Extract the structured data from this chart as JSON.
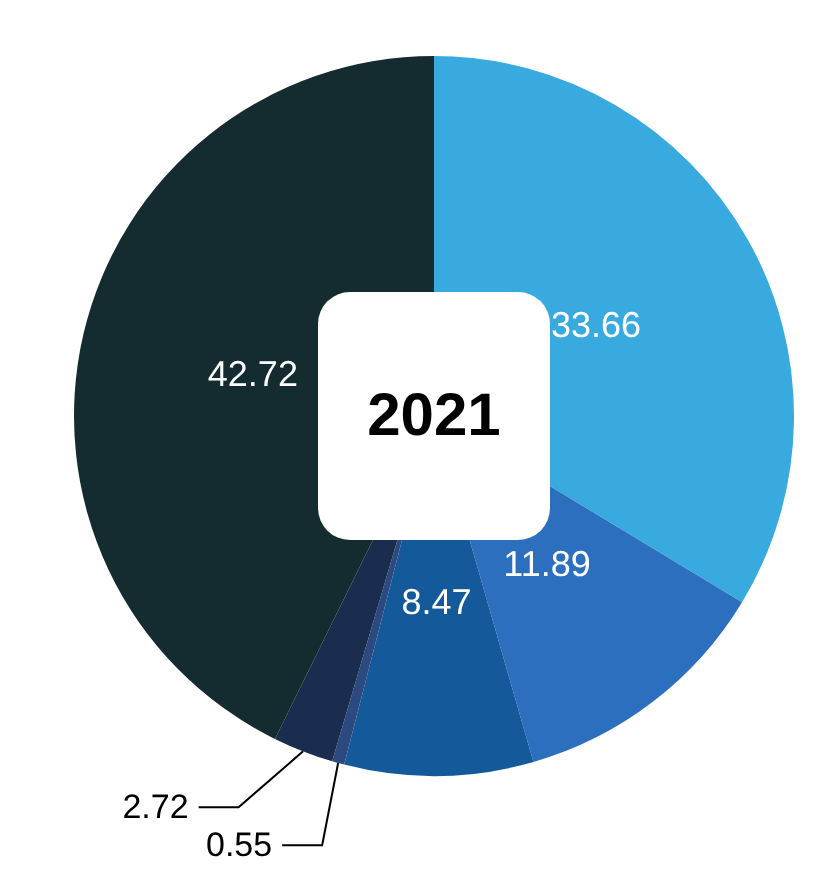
{
  "chart_data": {
    "type": "pie",
    "title": "2021",
    "categories": [
      null,
      null,
      null,
      null,
      null,
      null
    ],
    "values": [
      33.66,
      11.89,
      8.47,
      0.55,
      2.72,
      42.72
    ],
    "colors": [
      "#38aae0",
      "#2c6fbf",
      "#14599a",
      "#2a4a80",
      "#1b2d4e",
      "#142c30"
    ],
    "data_labels": true
  }
}
